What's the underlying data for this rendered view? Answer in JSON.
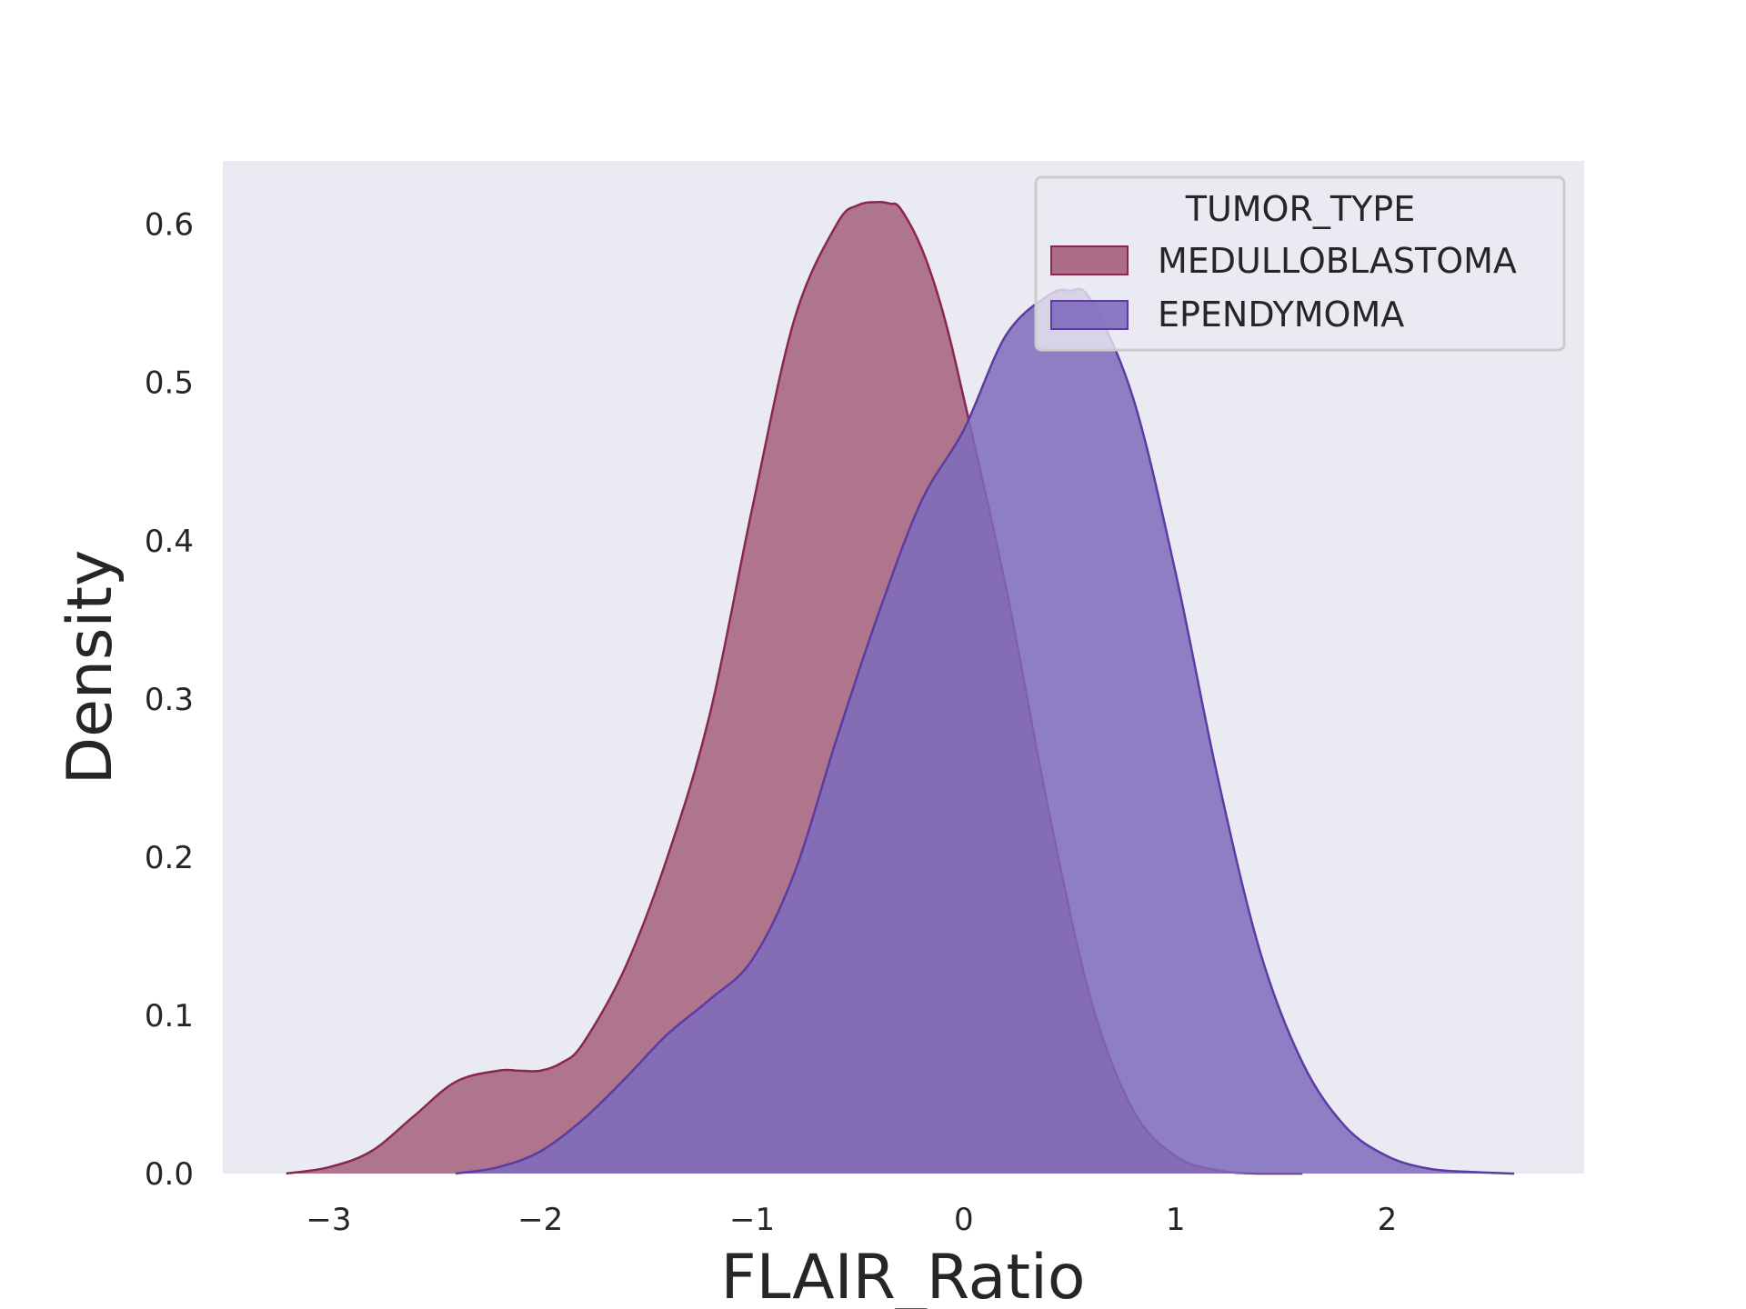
{
  "chart_data": {
    "type": "area",
    "title": "",
    "xlabel": "FLAIR_Ratio",
    "ylabel": "Density",
    "xlim": [
      -3.5,
      2.93
    ],
    "ylim": [
      0,
      0.64
    ],
    "xticks": [
      -3,
      -2,
      -1,
      0,
      1,
      2
    ],
    "xtick_labels": [
      "−3",
      "−2",
      "−1",
      "0",
      "1",
      "2"
    ],
    "yticks": [
      0.0,
      0.1,
      0.2,
      0.3,
      0.4,
      0.5,
      0.6
    ],
    "ytick_labels": [
      "0.0",
      "0.1",
      "0.2",
      "0.3",
      "0.4",
      "0.5",
      "0.6"
    ],
    "grid": false,
    "background": "#eaeaf2",
    "legend": {
      "title": "TUMOR_TYPE",
      "placement": "top-right"
    },
    "series": [
      {
        "name": "MEDULLOBLASTOMA",
        "fill": "#a4607a",
        "stroke": "#8b2650",
        "x": [
          -3.2,
          -3.0,
          -2.8,
          -2.6,
          -2.4,
          -2.2,
          -2.1,
          -2.0,
          -1.9,
          -1.8,
          -1.6,
          -1.4,
          -1.2,
          -1.0,
          -0.8,
          -0.6,
          -0.5,
          -0.4,
          -0.35,
          -0.3,
          -0.2,
          -0.1,
          0.0,
          0.2,
          0.4,
          0.6,
          0.8,
          1.0,
          1.2,
          1.4,
          1.6
        ],
        "y": [
          0.0,
          0.004,
          0.014,
          0.036,
          0.058,
          0.065,
          0.065,
          0.065,
          0.07,
          0.082,
          0.13,
          0.2,
          0.29,
          0.42,
          0.54,
          0.6,
          0.612,
          0.614,
          0.613,
          0.61,
          0.585,
          0.545,
          0.49,
          0.37,
          0.23,
          0.11,
          0.04,
          0.011,
          0.002,
          0.0,
          0.0
        ]
      },
      {
        "name": "EPENDYMOMA",
        "fill": "#7e6cbc",
        "stroke": "#5c3ba4",
        "x": [
          -2.4,
          -2.2,
          -2.0,
          -1.8,
          -1.6,
          -1.4,
          -1.2,
          -1.0,
          -0.8,
          -0.6,
          -0.4,
          -0.2,
          0.0,
          0.2,
          0.4,
          0.5,
          0.6,
          0.8,
          1.0,
          1.2,
          1.4,
          1.6,
          1.8,
          2.0,
          2.2,
          2.4,
          2.6
        ],
        "y": [
          0.0,
          0.004,
          0.014,
          0.034,
          0.06,
          0.088,
          0.11,
          0.135,
          0.19,
          0.275,
          0.355,
          0.425,
          0.47,
          0.53,
          0.555,
          0.558,
          0.552,
          0.49,
          0.38,
          0.25,
          0.14,
          0.07,
          0.03,
          0.011,
          0.003,
          0.001,
          0.0
        ]
      }
    ]
  }
}
